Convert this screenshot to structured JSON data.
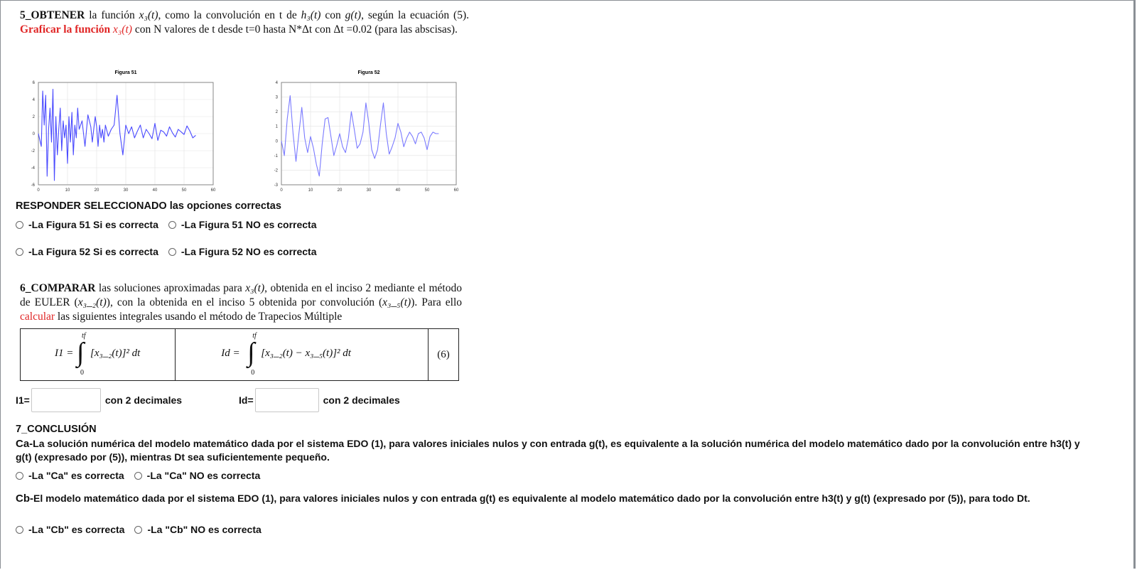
{
  "q5": {
    "title_bold": "5_OBTENER",
    "text1": " la función ",
    "fn_x3": "x₃(t)",
    "text2": ", como la convolución en t de ",
    "fn_h3": "h₃(t)",
    "text3": " con ",
    "fn_g": "g(t)",
    "text4": ", según la ecuación (5). ",
    "red_text": "Graficar la función ",
    "red_fn": "x₃(t)",
    "text5": " con N valores de t desde t=0 hasta N*Δt con Δt =0.02 (para las abscisas).",
    "respond_label": "RESPONDER SELECCIONADO las opciones correctas",
    "options": [
      "-La Figura 51 Si es correcta",
      "-La Figura 51 NO es correcta",
      "-La Figura 52 Si es correcta",
      "-La Figura 52 NO es correcta"
    ]
  },
  "figures": [
    {
      "title": "Figura 51",
      "x_ticks": [
        "0",
        "10",
        "20",
        "30",
        "40",
        "50",
        "60"
      ],
      "y_ticks": [
        "6",
        "4",
        "2",
        "0",
        "-2",
        "-4",
        "-6"
      ]
    },
    {
      "title": "Figura 52",
      "x_ticks": [
        "0",
        "10",
        "20",
        "30",
        "40",
        "50",
        "60"
      ],
      "y_ticks": [
        "4",
        "3",
        "2",
        "1",
        "0",
        "-1",
        "-2",
        "-3"
      ]
    }
  ],
  "chart_data": [
    {
      "type": "line",
      "title": "Figura 51",
      "xlim": [
        0,
        60
      ],
      "ylim": [
        -6,
        6
      ],
      "grid": true,
      "color": "#4a4aff",
      "series": [
        {
          "x": [
            0,
            1,
            1.5,
            2,
            2.5,
            3,
            3.5,
            4,
            4.5,
            5,
            5.5,
            6,
            6.5,
            7,
            7.5,
            8,
            8.5,
            9,
            9.5,
            10,
            10.5,
            11,
            11.5,
            12,
            12.5,
            13,
            13.5,
            14,
            15,
            16,
            17,
            18,
            18.5,
            19,
            19.5,
            20,
            20.5,
            21,
            21.5,
            22,
            22.5,
            23,
            24,
            25,
            26,
            27,
            28,
            29,
            30,
            31,
            32,
            33,
            34,
            35,
            36,
            37,
            38,
            39,
            40,
            41,
            42,
            43,
            44,
            45,
            46,
            47,
            48,
            49,
            50,
            51,
            52,
            53,
            54
          ],
          "y": [
            0,
            -1.5,
            5,
            1,
            4.5,
            -5,
            0.5,
            3,
            -1,
            5.2,
            -5.5,
            2,
            -2.5,
            0.5,
            3,
            -2,
            1.5,
            -0.5,
            1,
            -3.5,
            2,
            -1,
            2.5,
            -2.5,
            1,
            -0.5,
            3,
            0.5,
            1.5,
            -1.5,
            2.2,
            0.8,
            -1,
            0.5,
            2,
            0.8,
            -1.5,
            1,
            -0.5,
            0.5,
            -1,
            1,
            -0.3,
            0.5,
            1,
            4.5,
            0,
            -2.5,
            1,
            0,
            0.8,
            -0.5,
            0.3,
            1,
            -0.5,
            0.5,
            0,
            -0.6,
            1.2,
            -0.8,
            0.4,
            0.2,
            -0.3,
            0.8,
            0.1,
            -0.4,
            0.5,
            0.2,
            -0.1,
            0.9,
            0.3,
            -0.5,
            -0.2
          ]
        }
      ]
    },
    {
      "type": "line",
      "title": "Figura 52",
      "xlim": [
        0,
        60
      ],
      "ylim": [
        -3,
        4
      ],
      "grid": true,
      "color": "#7a7aff",
      "series": [
        {
          "x": [
            0,
            1,
            2,
            3,
            4,
            5,
            6,
            7,
            8,
            9,
            10,
            11,
            12,
            13,
            14,
            15,
            16,
            17,
            18,
            19,
            20,
            21,
            22,
            23,
            24,
            25,
            26,
            27,
            28,
            29,
            30,
            31,
            32,
            33,
            34,
            35,
            36,
            37,
            38,
            39,
            40,
            41,
            42,
            43,
            44,
            45,
            46,
            47,
            48,
            49,
            50,
            51,
            52,
            53,
            54
          ],
          "y": [
            0,
            -1,
            1.5,
            3.1,
            0.5,
            -1.4,
            0.5,
            2.3,
            0.2,
            -0.8,
            0.3,
            -0.5,
            -1.6,
            -2.4,
            -0.2,
            1.5,
            1.6,
            0.3,
            -1,
            -0.3,
            0.5,
            -0.4,
            -0.8,
            0.2,
            2,
            0.8,
            -0.5,
            -0.2,
            0.6,
            2.6,
            1.2,
            -0.6,
            -1.2,
            -0.6,
            1.1,
            2.6,
            0.5,
            -0.9,
            -0.4,
            0.2,
            1.2,
            0.6,
            -0.4,
            0.2,
            0.6,
            0.3,
            -0.2,
            0.5,
            0.6,
            0.2,
            -0.6,
            0.3,
            0.6,
            0.5,
            0.5
          ]
        }
      ]
    }
  ],
  "q6": {
    "title_bold": "6_COMPARAR",
    "text1": " las soluciones aproximadas para ",
    "fn_x3": "x₃(t)",
    "text2": ", obtenida en el inciso 2 mediante el método de EULER (",
    "fn_x32": "x₃_₂(t)",
    "text3": "), con la obtenida en el inciso 5 obtenida por convolución (",
    "fn_x35": "x₃_₅(t)",
    "text4": "). Para ello ",
    "red_text": "calcular",
    "text5": " las siguientes integrales usando el método de Trapecios Múltiple",
    "eq1_lhs": "I1 =",
    "eq1_upper": "tf",
    "eq1_lower": "0",
    "eq1_body": "[x₃_₂(t)]² dt",
    "eq2_lhs": "Id =",
    "eq2_upper": "tf",
    "eq2_lower": "0",
    "eq2_body": "[x₃_₂(t) − x₃_₅(t)]² dt",
    "eq_number": "(6)",
    "i1_label": "I1=",
    "i1_value": "",
    "i1_suffix": "con 2 decimales",
    "id_label": "Id=",
    "id_value": "",
    "id_suffix": "con 2 decimales"
  },
  "q7": {
    "title": "7_CONCLUSIÓN",
    "ca_prefix": "Ca-",
    "ca_text": "La solución numérica del modelo matemático dada por el sistema EDO (1), para valores iniciales nulos y con entrada g(t), es equivalente a la solución numérica del modelo matemático dado por la convolución entre h3(t) y g(t) (expresado por (5)), mientras Dt sea suficientemente pequeño.",
    "ca_options": [
      "-La \"Ca\" es correcta",
      "-La \"Ca\" NO es correcta"
    ],
    "cb_prefix": "Cb-",
    "cb_text": "El modelo matemático dada por el sistema EDO (1), para valores iniciales nulos y con entrada g(t) es equivalente al modelo matemático dado por la convolución entre h3(t) y g(t) (expresado por (5)), para todo Dt.",
    "cb_options": [
      "-La \"Cb\" es correcta",
      "-La \"Cb\" NO es correcta"
    ]
  }
}
